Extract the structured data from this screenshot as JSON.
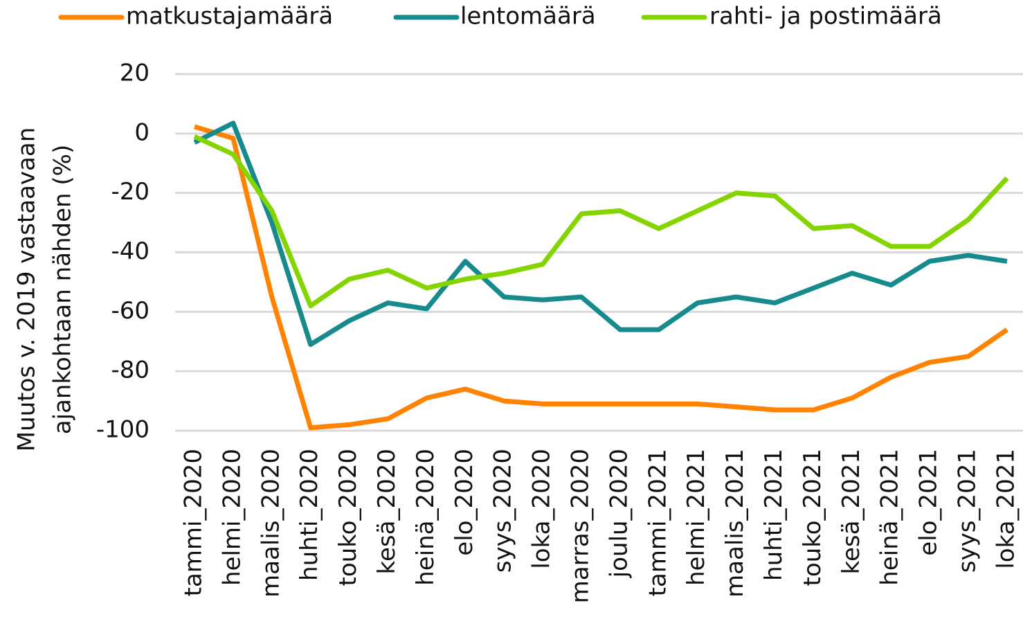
{
  "chart_data": {
    "type": "line",
    "ylabel": [
      "Muutos v. 2019 vastaavaan",
      "ajankohtaan nähden (%)"
    ],
    "categories": [
      "tammi_2020",
      "helmi_2020",
      "maalis_2020",
      "huhti_2020",
      "touko_2020",
      "kesä_2020",
      "heinä_2020",
      "elo_2020",
      "syys_2020",
      "loka_2020",
      "marras_2020",
      "joulu_2020",
      "tammi_2021",
      "helmi_2021",
      "maalis_2021",
      "huhti_2021",
      "touko_2021",
      "kesä_2021",
      "heinä_2021",
      "elo_2021",
      "syys_2021",
      "loka_2021"
    ],
    "series": [
      {
        "name": "matkustajamäärä",
        "color": "#ff8200",
        "values": [
          2.3,
          -1.6,
          -55,
          -99,
          -98,
          -96,
          -89,
          -86,
          -90,
          -91,
          -91,
          -91,
          -91,
          -91,
          -92,
          -93,
          -93,
          -89,
          -82,
          -77,
          -75,
          -66
        ]
      },
      {
        "name": "lentomäärä",
        "color": "#168a8c",
        "values": [
          -3,
          3.5,
          -30,
          -71,
          -63,
          -57,
          -59,
          -43,
          -55,
          -56,
          -55,
          -66,
          -66,
          -57,
          -55,
          -57,
          -52,
          -47,
          -51,
          -43,
          -41,
          -43
        ]
      },
      {
        "name": "rahti- ja postimäärä",
        "color": "#84d400",
        "values": [
          -1,
          -7,
          -26,
          -58,
          -49,
          -46,
          -52,
          -49,
          -47,
          -44,
          -27,
          -26,
          -32,
          -26,
          -20,
          -21,
          -32,
          -31,
          -38,
          -38,
          -29,
          -15
        ]
      }
    ],
    "ylim": [
      -100,
      20
    ],
    "yticks": [
      20,
      0,
      -20,
      -40,
      -60,
      -80,
      -100
    ],
    "grid": true,
    "legend": "top"
  }
}
